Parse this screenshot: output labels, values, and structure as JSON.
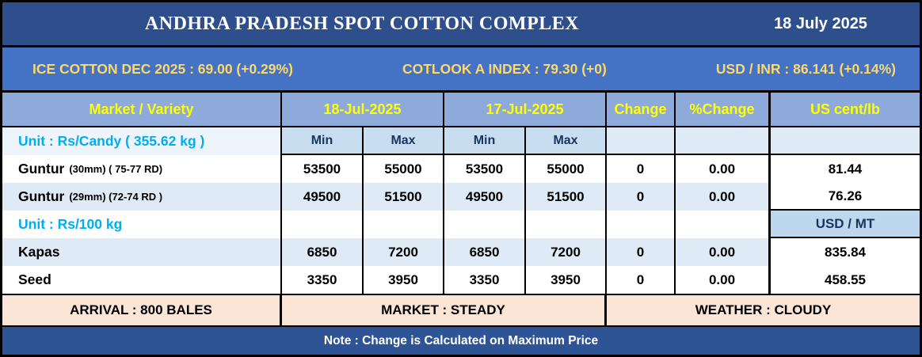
{
  "titlebar": {
    "title": "ANDHRA PRADESH SPOT COTTON COMPLEX",
    "date": "18 July 2025"
  },
  "ticker": {
    "ice_cotton": "ICE COTTON DEC 2025 : 69.00 (+0.29%)",
    "cotlook": "COTLOOK A INDEX : 79.30 (+0)",
    "usd_inr": "USD / INR : 86.141 (+0.14%)"
  },
  "table": {
    "header": {
      "market_variety": "Market / Variety",
      "date_today": "18-Jul-2025",
      "date_prev": "17-Jul-2025",
      "change": "Change",
      "pct_change": "%Change",
      "us_cent_lb": "US cent/lb"
    },
    "subheader": {
      "unit_candy": "Unit : Rs/Candy ( 355.62 kg )",
      "min": "Min",
      "max": "Max"
    },
    "rows": [
      {
        "market": "Guntur",
        "spec": "(30mm) ( 75-77 RD)",
        "today_min": "53500",
        "today_max": "55000",
        "prev_min": "53500",
        "prev_max": "55000",
        "change": "0",
        "pct_change": "0.00",
        "intl": "81.44"
      },
      {
        "market": "Guntur",
        "spec": "(29mm) (72-74 RD )",
        "today_min": "49500",
        "today_max": "51500",
        "prev_min": "49500",
        "prev_max": "51500",
        "change": "0",
        "pct_change": "0.00",
        "intl": "76.26"
      },
      {
        "unit": "Unit : Rs/100 kg",
        "intl_unit": "USD / MT"
      },
      {
        "market": "Kapas",
        "spec": "",
        "today_min": "6850",
        "today_max": "7200",
        "prev_min": "6850",
        "prev_max": "7200",
        "change": "0",
        "pct_change": "0.00",
        "intl": "835.84"
      },
      {
        "market": "Seed",
        "spec": "",
        "today_min": "3350",
        "today_max": "3950",
        "prev_min": "3350",
        "prev_max": "3950",
        "change": "0",
        "pct_change": "0.00",
        "intl": "458.55"
      }
    ]
  },
  "footer": {
    "arrival": "ARRIVAL : 800 BALES",
    "market": "MARKET : STEADY",
    "weather": "WEATHER : CLOUDY"
  },
  "note": "Note : Change is Calculated on Maximum Price",
  "colors": {
    "title_bar_bg": "#2F4E8C",
    "ticker_bg": "#4472C4",
    "ticker_text": "#FFD966",
    "header_bg": "#8EAADB",
    "header_text": "#FFFF00",
    "unit_text": "#00AEEF",
    "minmax_bg": "#C9DDF1",
    "minmax_text": "#17365D",
    "row_alt_bg": "#DEEBF7",
    "usd_mt_bg": "#BDD7EE",
    "footer_bg": "#FBE5D6",
    "note_bg": "#2F5496"
  }
}
